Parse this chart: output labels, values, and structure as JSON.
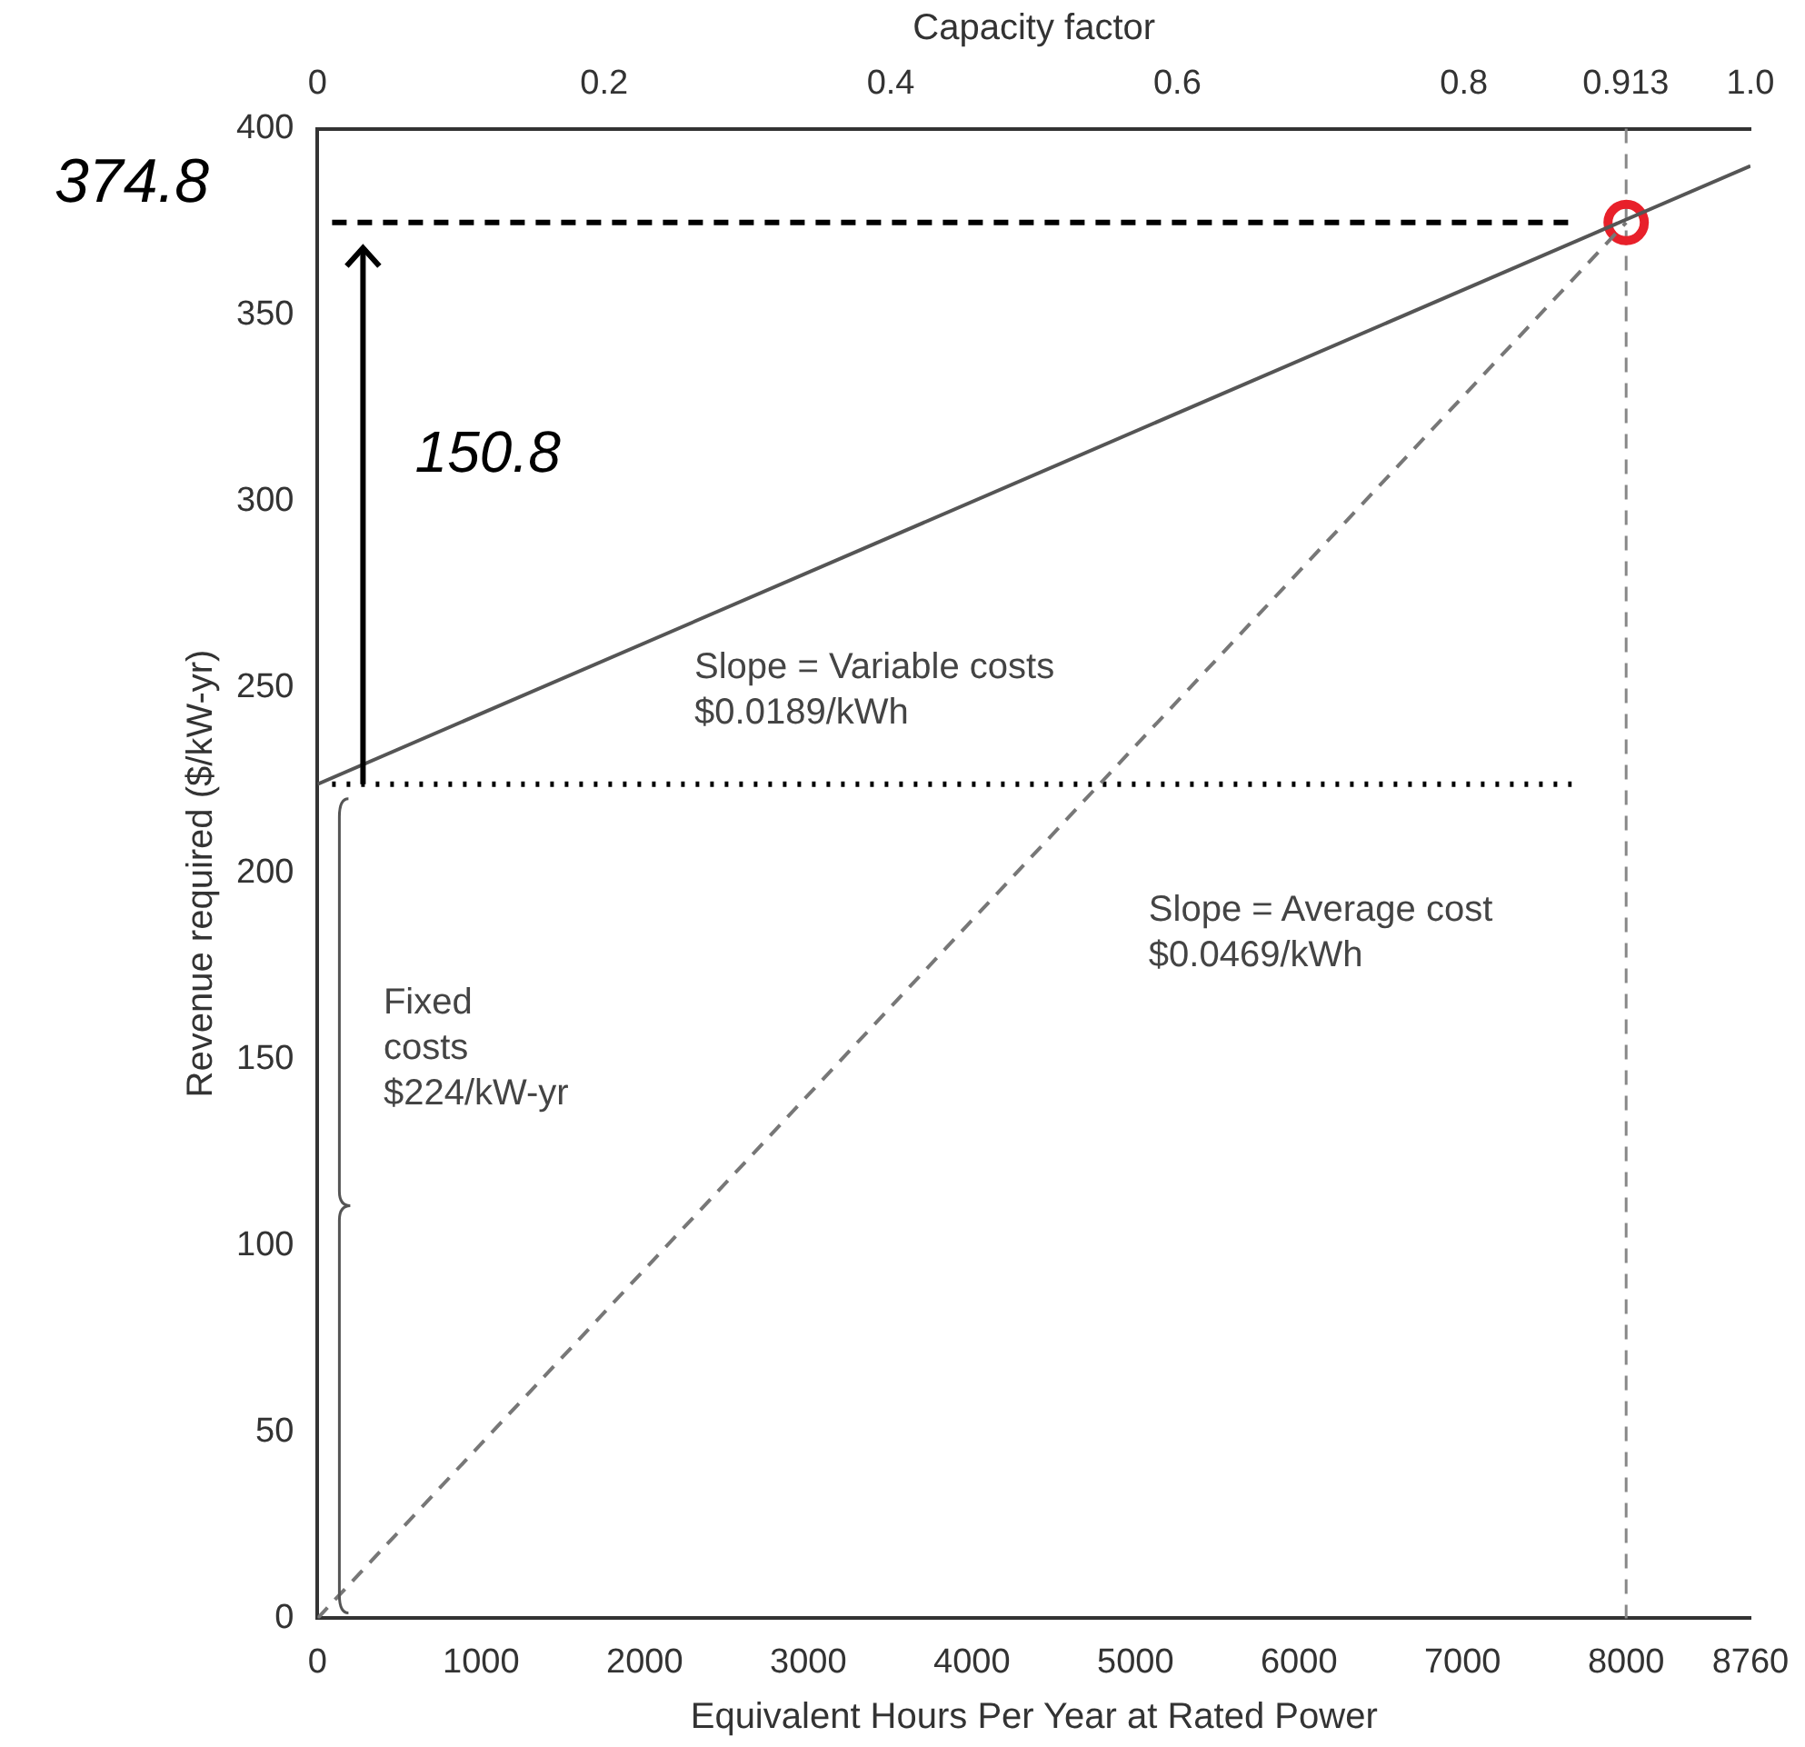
{
  "chart_data": {
    "type": "line",
    "xlabel": "Equivalent Hours Per Year at Rated Power",
    "x2label": "Capacity factor",
    "ylabel": "Revenue required ($/kW-yr)",
    "xlim": [
      0,
      8760
    ],
    "xticks": [
      0,
      1000,
      2000,
      3000,
      4000,
      5000,
      6000,
      7000,
      8000,
      8760
    ],
    "x2lim": [
      0,
      1
    ],
    "x2ticks": [
      0,
      0.2,
      0.4,
      0.6,
      0.8,
      0.913,
      {
        "value": 1,
        "label": "1.0"
      }
    ],
    "ylim": [
      0,
      400
    ],
    "yticks": [
      0,
      50,
      100,
      150,
      200,
      250,
      300,
      350,
      400
    ],
    "grid": false,
    "legend": false,
    "series": [
      {
        "color": "#555555",
        "line_style": "solid",
        "marker": "none",
        "x": [
          0,
          8760
        ],
        "values": [
          224,
          390
        ]
      },
      {
        "color": "#777777",
        "line_style": "dashed",
        "marker": "none",
        "x": [
          0,
          8000
        ],
        "values": [
          0,
          374.8
        ]
      },
      {
        "type": "scatter",
        "color": "#e8202a",
        "marker": "circle",
        "x": [
          8000
        ],
        "values": [
          374.8
        ]
      }
    ],
    "ref_lines": [
      {
        "axis": "x",
        "value": 8000,
        "color": "#888888",
        "line_style": "dashed"
      },
      {
        "axis": "y",
        "value": 374.8,
        "label": "374.8",
        "color": "#000000",
        "line_style": "dashed"
      },
      {
        "axis": "y",
        "value": 224,
        "color": "#000000",
        "line_style": "dotted"
      }
    ],
    "annotations": [
      "150.8",
      "Slope = Variable costs\n$0.0189/kWh",
      "Slope = Average cost\n$0.0469/kWh",
      "Fixed\ncosts\n$224/kW-yr"
    ]
  }
}
